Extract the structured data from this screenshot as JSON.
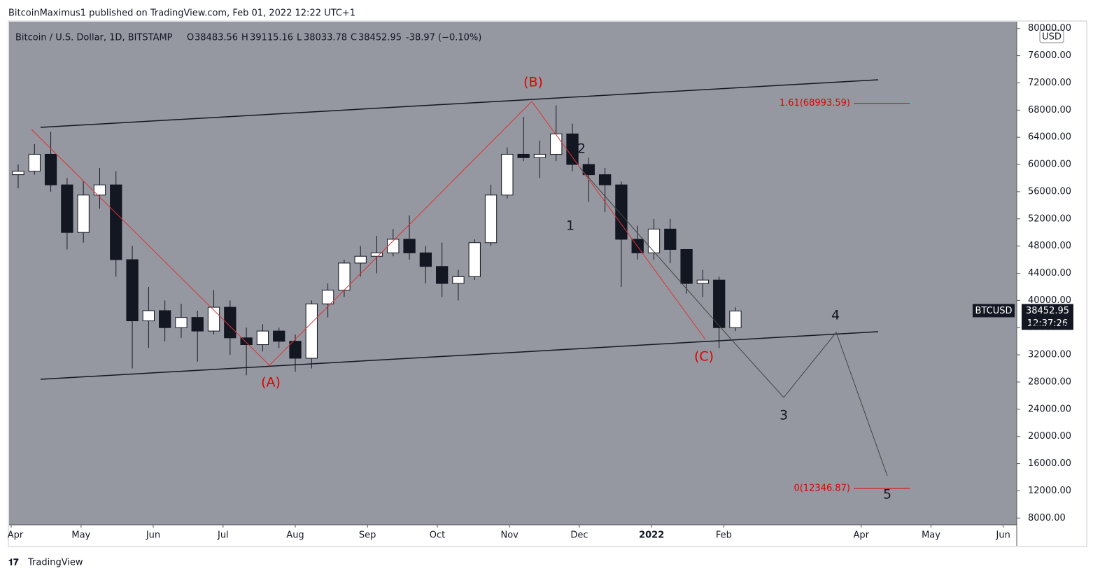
{
  "header": {
    "publisher": "BitcoinMaximus1 published on TradingView.com, Feb 01, 2022 12:22 UTC+1"
  },
  "footer": {
    "brand": "TradingView"
  },
  "chart_data": {
    "type": "candlestick",
    "legend": {
      "symbol": "Bitcoin / U.S. Dollar, 1D, BITSTAMP",
      "o_label": "O",
      "o": "38483.56",
      "h_label": "H",
      "h": "39115.16",
      "l_label": "L",
      "l": "38033.78",
      "c_label": "C",
      "c": "38452.95",
      "change": "-38.97 (−0.10%)"
    },
    "currency": "USD",
    "price_tag": {
      "symbol": "BTCUSD",
      "value": 38452.95,
      "label": "38452.95",
      "countdown": "12:37:26"
    },
    "up_color": "#ffffff",
    "down_color": "#131722",
    "background": "#9598a1",
    "xlim": [
      -0.9,
      431.8
    ],
    "xticks": [
      {
        "value": 0,
        "label": "Apr"
      },
      {
        "value": 30,
        "label": "May"
      },
      {
        "value": 61,
        "label": "Jun"
      },
      {
        "value": 91,
        "label": "Jul"
      },
      {
        "value": 122,
        "label": "Aug"
      },
      {
        "value": 153,
        "label": "Sep"
      },
      {
        "value": 183,
        "label": "Oct"
      },
      {
        "value": 214,
        "label": "Nov"
      },
      {
        "value": 244,
        "label": "Dec"
      },
      {
        "value": 275,
        "label": "2022"
      },
      {
        "value": 306,
        "label": "Feb"
      },
      {
        "value": 365,
        "label": "Apr"
      },
      {
        "value": 395,
        "label": "May"
      },
      {
        "value": 426,
        "label": "Jun"
      }
    ],
    "ylim": [
      7000,
      81000
    ],
    "yticks": [
      {
        "value": 8000,
        "label": "8000.00"
      },
      {
        "value": 12000,
        "label": "12000.00"
      },
      {
        "value": 16000,
        "label": "16000.00"
      },
      {
        "value": 20000,
        "label": "20000.00"
      },
      {
        "value": 24000,
        "label": "24000.00"
      },
      {
        "value": 28000,
        "label": "28000.00"
      },
      {
        "value": 32000,
        "label": "32000.00"
      },
      {
        "value": 36000,
        "label": "36000.00"
      },
      {
        "value": 40000,
        "label": "40000.00"
      },
      {
        "value": 44000,
        "label": "44000.00"
      },
      {
        "value": 48000,
        "label": "48000.00"
      },
      {
        "value": 52000,
        "label": "52000.00"
      },
      {
        "value": 56000,
        "label": "56000.00"
      },
      {
        "value": 60000,
        "label": "60000.00"
      },
      {
        "value": 64000,
        "label": "64000.00"
      },
      {
        "value": 68000,
        "label": "68000.00"
      },
      {
        "value": 72000,
        "label": "72000.00"
      },
      {
        "value": 76000,
        "label": "76000.00"
      },
      {
        "value": 80000,
        "label": "80000.00"
      }
    ],
    "fib_levels": [
      {
        "value": 68993.59,
        "label": "1.61(68993.59)",
        "color": "#e00000"
      },
      {
        "value": 12346.87,
        "label": "0(12346.87)",
        "color": "#e00000"
      }
    ],
    "annotations": {
      "a": "(A)",
      "b": "(B)",
      "c": "(C)",
      "w1": "1",
      "w2": "2",
      "w3": "3",
      "w4": "4",
      "w5": "5"
    },
    "candles": [
      {
        "x": 0,
        "open": 58500,
        "high": 60000,
        "low": 56500,
        "close": 59000
      },
      {
        "x": 7,
        "open": 59000,
        "high": 63000,
        "low": 58500,
        "close": 61500
      },
      {
        "x": 14,
        "open": 61500,
        "high": 64800,
        "low": 56000,
        "close": 57000
      },
      {
        "x": 21,
        "open": 57000,
        "high": 58000,
        "low": 47500,
        "close": 50000
      },
      {
        "x": 28,
        "open": 50000,
        "high": 57500,
        "low": 48500,
        "close": 55500
      },
      {
        "x": 35,
        "open": 55500,
        "high": 59500,
        "low": 53500,
        "close": 57000
      },
      {
        "x": 42,
        "open": 57000,
        "high": 59000,
        "low": 43500,
        "close": 46000
      },
      {
        "x": 49,
        "open": 46000,
        "high": 48000,
        "low": 30000,
        "close": 37000
      },
      {
        "x": 56,
        "open": 37000,
        "high": 42000,
        "low": 33000,
        "close": 38500
      },
      {
        "x": 63,
        "open": 38500,
        "high": 40000,
        "low": 34000,
        "close": 36000
      },
      {
        "x": 70,
        "open": 36000,
        "high": 39500,
        "low": 34500,
        "close": 37500
      },
      {
        "x": 77,
        "open": 37500,
        "high": 38500,
        "low": 31000,
        "close": 35500
      },
      {
        "x": 84,
        "open": 35500,
        "high": 41500,
        "low": 35000,
        "close": 39000
      },
      {
        "x": 91,
        "open": 39000,
        "high": 40000,
        "low": 32000,
        "close": 34500
      },
      {
        "x": 98,
        "open": 34500,
        "high": 36000,
        "low": 29000,
        "close": 33500
      },
      {
        "x": 105,
        "open": 33500,
        "high": 36500,
        "low": 32500,
        "close": 35500
      },
      {
        "x": 112,
        "open": 35500,
        "high": 36000,
        "low": 33000,
        "close": 34000
      },
      {
        "x": 119,
        "open": 34000,
        "high": 35000,
        "low": 29500,
        "close": 31500
      },
      {
        "x": 126,
        "open": 31500,
        "high": 40000,
        "low": 30000,
        "close": 39500
      },
      {
        "x": 133,
        "open": 39500,
        "high": 42500,
        "low": 37500,
        "close": 41500
      },
      {
        "x": 140,
        "open": 41500,
        "high": 46000,
        "low": 40500,
        "close": 45500
      },
      {
        "x": 147,
        "open": 45500,
        "high": 48000,
        "low": 43500,
        "close": 46500
      },
      {
        "x": 154,
        "open": 46500,
        "high": 49500,
        "low": 44000,
        "close": 47000
      },
      {
        "x": 161,
        "open": 47000,
        "high": 50500,
        "low": 46500,
        "close": 49000
      },
      {
        "x": 168,
        "open": 49000,
        "high": 52500,
        "low": 46000,
        "close": 47000
      },
      {
        "x": 175,
        "open": 47000,
        "high": 48000,
        "low": 42500,
        "close": 45000
      },
      {
        "x": 182,
        "open": 45000,
        "high": 48500,
        "low": 40500,
        "close": 42500
      },
      {
        "x": 189,
        "open": 42500,
        "high": 44500,
        "low": 40000,
        "close": 43500
      },
      {
        "x": 196,
        "open": 43500,
        "high": 49000,
        "low": 43000,
        "close": 48500
      },
      {
        "x": 203,
        "open": 48500,
        "high": 57000,
        "low": 48000,
        "close": 55500
      },
      {
        "x": 210,
        "open": 55500,
        "high": 62500,
        "low": 55000,
        "close": 61500
      },
      {
        "x": 217,
        "open": 61500,
        "high": 67000,
        "low": 60500,
        "close": 61000
      },
      {
        "x": 224,
        "open": 61000,
        "high": 63500,
        "low": 58000,
        "close": 61500
      },
      {
        "x": 231,
        "open": 61500,
        "high": 68700,
        "low": 60500,
        "close": 64500
      },
      {
        "x": 238,
        "open": 64500,
        "high": 66000,
        "low": 59000,
        "close": 60000
      },
      {
        "x": 245,
        "open": 60000,
        "high": 61000,
        "low": 54500,
        "close": 58500
      },
      {
        "x": 252,
        "open": 58500,
        "high": 59500,
        "low": 53000,
        "close": 57000
      },
      {
        "x": 259,
        "open": 57000,
        "high": 57500,
        "low": 42000,
        "close": 49000
      },
      {
        "x": 266,
        "open": 49000,
        "high": 51000,
        "low": 46000,
        "close": 47000
      },
      {
        "x": 273,
        "open": 47000,
        "high": 52000,
        "low": 46000,
        "close": 50500
      },
      {
        "x": 280,
        "open": 50500,
        "high": 52000,
        "low": 45500,
        "close": 47500
      },
      {
        "x": 287,
        "open": 47500,
        "high": 47500,
        "low": 41000,
        "close": 42500
      },
      {
        "x": 294,
        "open": 42500,
        "high": 44500,
        "low": 40500,
        "close": 43000
      },
      {
        "x": 301,
        "open": 43000,
        "high": 43500,
        "low": 33000,
        "close": 36000
      },
      {
        "x": 308,
        "open": 36000,
        "high": 39000,
        "low": 35500,
        "close": 38450
      }
    ]
  }
}
